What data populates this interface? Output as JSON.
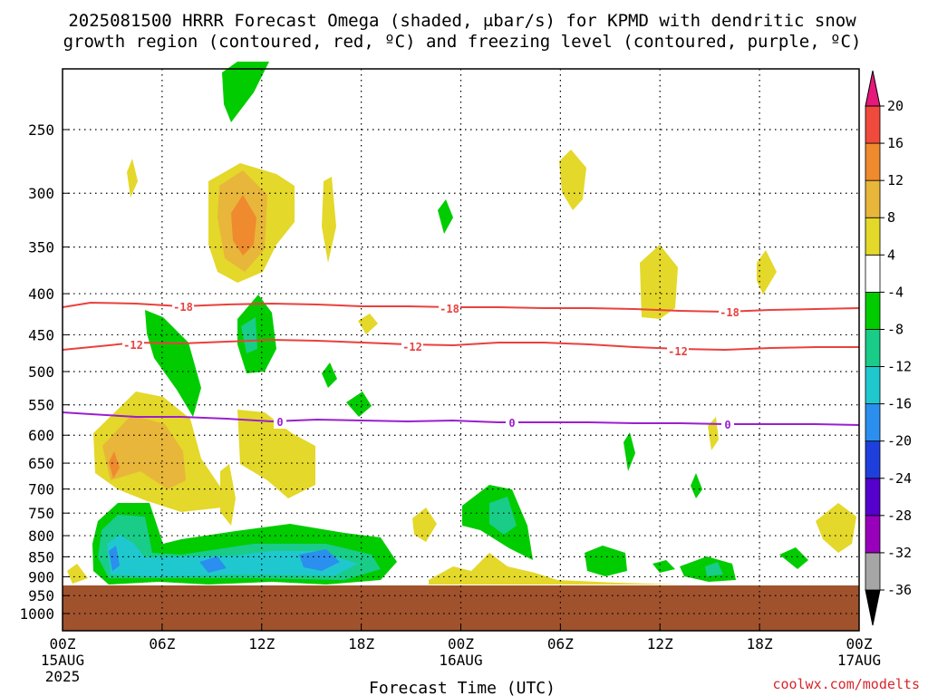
{
  "chart_data": {
    "type": "heatmap",
    "title": "2025081500 HRRR Forecast Omega (shaded, μbar/s) for KPMD with dendritic snow",
    "subtitle": "growth region (contoured, red, ºC) and freezing level (contoured, purple, ºC)",
    "xlabel": "Forecast Time (UTC)",
    "credit": "coolwx.com/modelts",
    "x_ticks": [
      {
        "hour": 0,
        "lines": [
          "00Z",
          "15AUG",
          "2025"
        ]
      },
      {
        "hour": 6,
        "lines": [
          "06Z"
        ]
      },
      {
        "hour": 12,
        "lines": [
          "12Z"
        ]
      },
      {
        "hour": 18,
        "lines": [
          "18Z"
        ]
      },
      {
        "hour": 24,
        "lines": [
          "00Z",
          "16AUG"
        ]
      },
      {
        "hour": 30,
        "lines": [
          "06Z"
        ]
      },
      {
        "hour": 36,
        "lines": [
          "12Z"
        ]
      },
      {
        "hour": 42,
        "lines": [
          "18Z"
        ]
      },
      {
        "hour": 48,
        "lines": [
          "00Z",
          "17AUG"
        ]
      }
    ],
    "y_ticks": [
      250,
      300,
      350,
      400,
      450,
      500,
      550,
      600,
      650,
      700,
      750,
      800,
      850,
      900,
      950,
      1000
    ],
    "xlim": [
      0,
      48
    ],
    "ylim": [
      1050,
      200
    ],
    "y_scale": "log-pressure",
    "grid": true,
    "colorbar": {
      "levels": [
        -36,
        -32,
        -28,
        -24,
        -20,
        -16,
        -12,
        -8,
        -4,
        4,
        8,
        12,
        16,
        20
      ],
      "colors": [
        "#000000",
        "#a6a6a6",
        "#9900bb",
        "#5500cc",
        "#1f3fdd",
        "#2a8fee",
        "#1fc8cf",
        "#19cc88",
        "#00cc00",
        "#ffffff",
        "#e4d82a",
        "#e8b63a",
        "#ef8a2e",
        "#f04a3c",
        "#e6187a"
      ]
    },
    "contours": [
      {
        "value": "-18",
        "color": "#e9413e",
        "label": "-18"
      },
      {
        "value": "-12",
        "color": "#e9413e",
        "label": "-12"
      },
      {
        "value": "0",
        "color": "#9b1fcf",
        "label": "0"
      }
    ],
    "terrain_color": "#a0522d"
  }
}
